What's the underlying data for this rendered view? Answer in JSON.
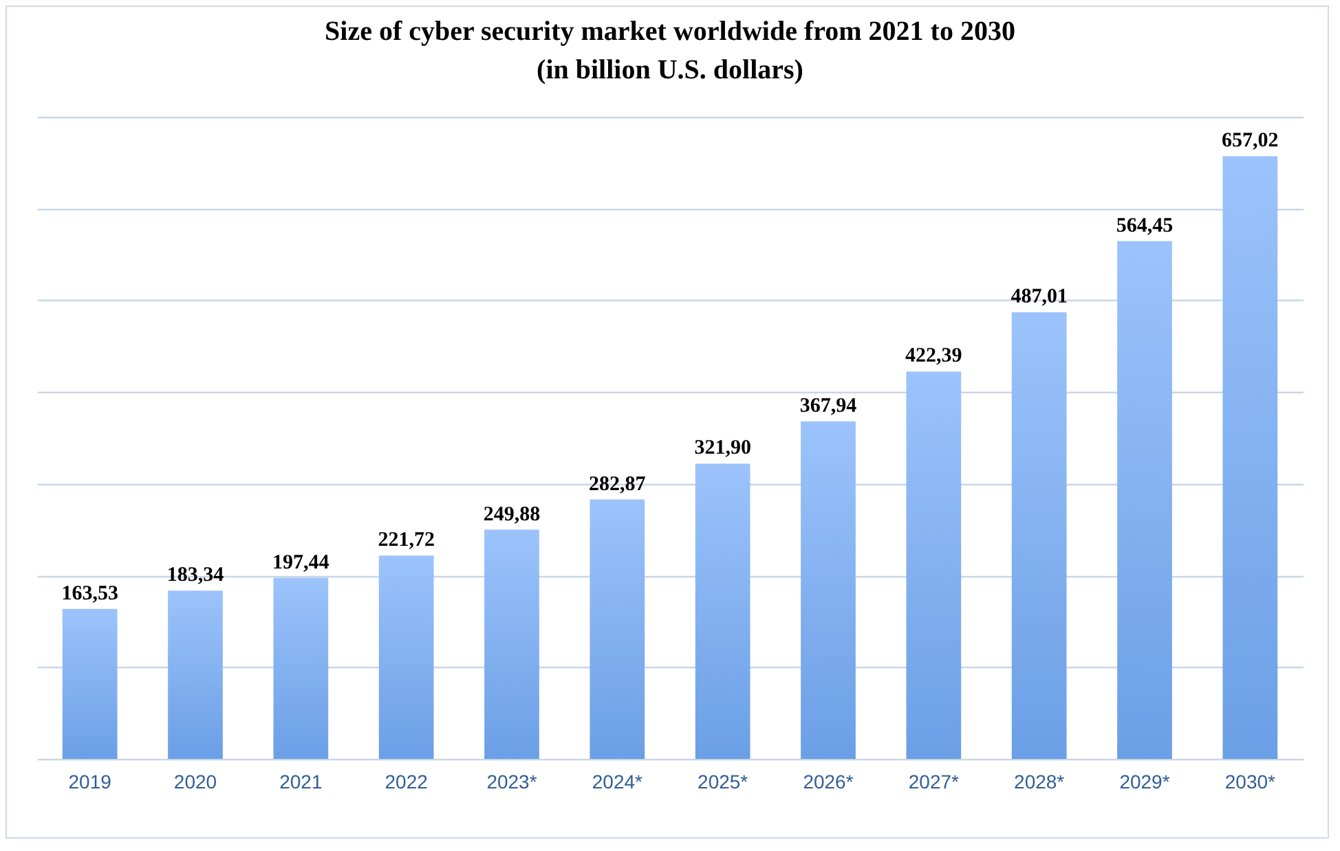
{
  "chart_data": {
    "type": "bar",
    "title": "Size of cyber security market worldwide  from 2021 to 2030\n(in billion U.S. dollars)",
    "categories": [
      "2019",
      "2020",
      "2021",
      "2022",
      "2023*",
      "2024*",
      "2025*",
      "2026*",
      "2027*",
      "2028*",
      "2029*",
      "2030*"
    ],
    "values": [
      163.53,
      183.34,
      197.44,
      221.72,
      249.88,
      282.87,
      321.9,
      367.94,
      422.39,
      487.01,
      564.45,
      657.02
    ],
    "value_labels": [
      "163,53",
      "183,34",
      "197,44",
      "221,72",
      "249,88",
      "282,87",
      "321,90",
      "367,94",
      "422,39",
      "487,01",
      "564,45",
      "657,02"
    ],
    "color": "#6b9fe6",
    "ylim": [
      0,
      700
    ],
    "yticks": [
      {
        "value": 0,
        "label": null
      },
      {
        "value": 100,
        "label": null
      },
      {
        "value": 200,
        "label": null
      },
      {
        "value": 300,
        "label": null
      },
      {
        "value": 400,
        "label": null
      },
      {
        "value": 500,
        "label": null
      },
      {
        "value": 600,
        "label": null
      },
      {
        "value": 700,
        "label": null
      }
    ],
    "grid": "y",
    "tick_labels": "x"
  }
}
